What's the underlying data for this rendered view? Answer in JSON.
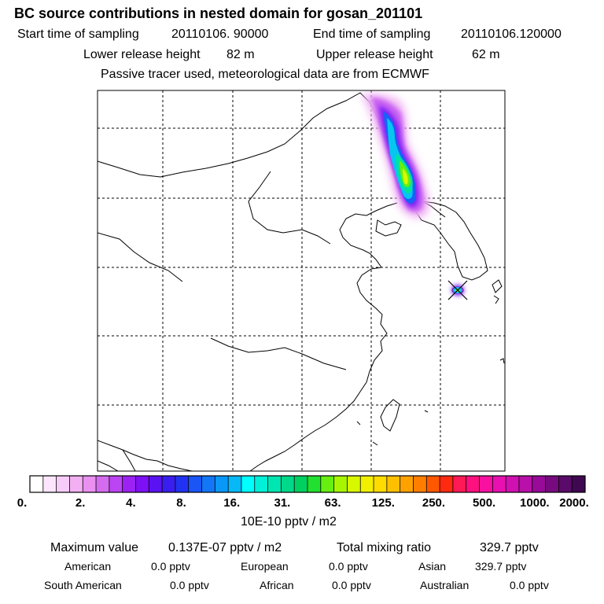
{
  "title": "BC  source contributions in nested domain for gosan_201101",
  "header": {
    "start_label": "Start time of sampling",
    "start_value": "20110106. 90000",
    "end_label": "End time of sampling",
    "end_value": "20110106.120000",
    "lower_label": "Lower release height",
    "lower_value": "82 m",
    "upper_label": "Upper release height",
    "upper_value": "62 m",
    "note": "Passive tracer used, meteorological data are from ECMWF"
  },
  "colorbar": {
    "ticks": [
      "0.",
      "2.",
      "4.",
      "8.",
      "16.",
      "31.",
      "63.",
      "125.",
      "250.",
      "500.",
      "1000.",
      "2000."
    ],
    "unit": "10E-10 pptv / m2",
    "colors": [
      "#ffffff",
      "#fde6fd",
      "#f8ccf8",
      "#f2b0f2",
      "#e990f0",
      "#d56cf0",
      "#bb45f2",
      "#9c22f4",
      "#7d10f5",
      "#5a12f2",
      "#3a1ef0",
      "#2232f2",
      "#1a55f5",
      "#1276f7",
      "#0a98f8",
      "#06b9f6",
      "#00ffff",
      "#00f0d8",
      "#00e6b0",
      "#00d88a",
      "#00d060",
      "#22e030",
      "#66ef10",
      "#a8f500",
      "#d8f800",
      "#f2f000",
      "#ffdc00",
      "#ffc000",
      "#ffa200",
      "#ff7e00",
      "#ff5800",
      "#ff2a10",
      "#ff1a55",
      "#ff1080",
      "#f810a0",
      "#e810b0",
      "#d010b0",
      "#b810a8",
      "#980a98",
      "#780a80",
      "#5a0a68",
      "#400850"
    ]
  },
  "summary": {
    "max_label": "Maximum value",
    "max_value": "0.137E-07 pptv / m2",
    "total_label": "Total mixing ratio",
    "total_value": "329.7 pptv",
    "regions": [
      {
        "name": "American",
        "value": "0.0 pptv"
      },
      {
        "name": "European",
        "value": "0.0 pptv"
      },
      {
        "name": "Asian",
        "value": "329.7 pptv"
      },
      {
        "name": "South American",
        "value": "0.0 pptv"
      },
      {
        "name": "African",
        "value": "0.0 pptv"
      },
      {
        "name": "Australian",
        "value": "0.0 pptv"
      }
    ]
  }
}
